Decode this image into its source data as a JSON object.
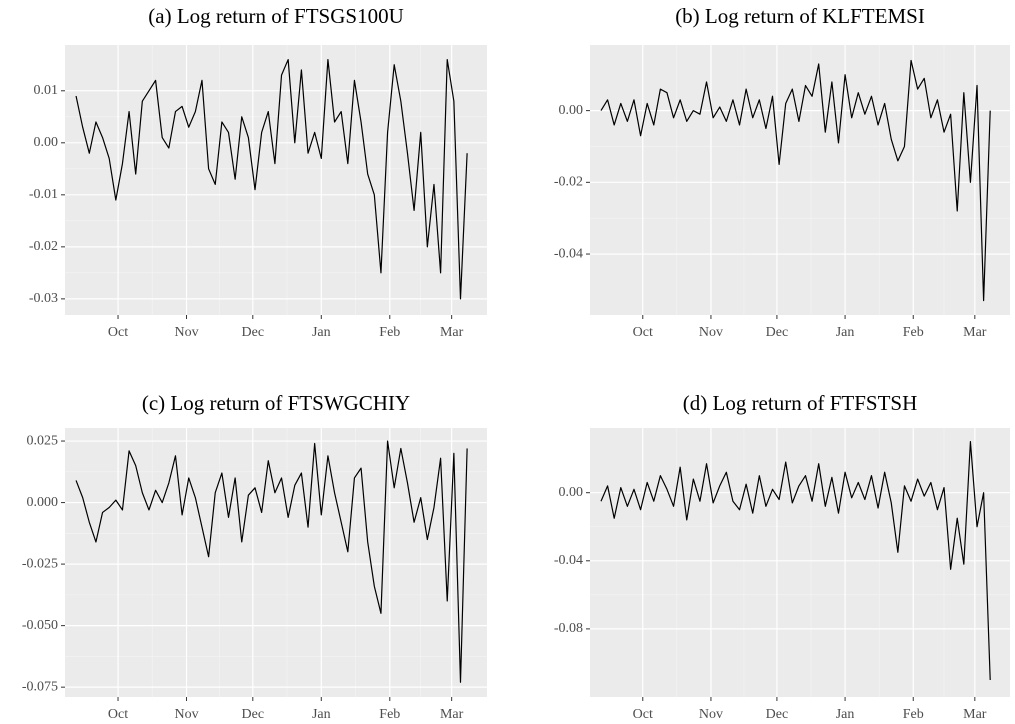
{
  "chart_data": [
    {
      "type": "line",
      "title": "(a) Log return of FTSGS100U",
      "x": [
        11,
        14,
        17,
        20,
        23,
        26,
        29,
        32,
        35,
        38,
        41,
        44,
        47,
        50,
        53,
        56,
        59,
        62,
        65,
        68,
        71,
        74,
        77,
        80,
        83,
        86,
        89,
        92,
        95,
        98,
        101,
        104,
        107,
        110,
        113,
        116,
        119,
        122,
        125,
        128,
        131,
        134,
        137,
        140,
        143,
        146,
        149,
        152,
        155,
        158,
        161,
        164,
        167,
        170,
        173,
        176,
        179,
        182,
        185,
        188
      ],
      "series": [
        {
          "color": "#000000",
          "values": [
            0.009,
            0.003,
            -0.002,
            0.004,
            0.001,
            -0.003,
            -0.011,
            -0.004,
            0.006,
            -0.006,
            0.008,
            0.01,
            0.012,
            0.001,
            -0.001,
            0.006,
            0.007,
            0.003,
            0.006,
            0.012,
            -0.005,
            -0.008,
            0.004,
            0.002,
            -0.007,
            0.005,
            0.001,
            -0.009,
            0.002,
            0.006,
            -0.004,
            0.013,
            0.016,
            0.0,
            0.014,
            -0.002,
            0.002,
            -0.003,
            0.016,
            0.004,
            0.006,
            -0.004,
            0.012,
            0.004,
            -0.006,
            -0.01,
            -0.025,
            0.002,
            0.015,
            0.008,
            -0.002,
            -0.013,
            0.002,
            -0.02,
            -0.008,
            -0.025,
            0.016,
            0.008,
            -0.03,
            -0.002
          ]
        }
      ],
      "xlim": [
        6,
        197
      ],
      "xticks": [
        {
          "value": 30,
          "label": "Oct"
        },
        {
          "value": 61,
          "label": "Nov"
        },
        {
          "value": 91,
          "label": "Dec"
        },
        {
          "value": 122,
          "label": "Jan"
        },
        {
          "value": 153,
          "label": "Feb"
        },
        {
          "value": 181,
          "label": "Mar"
        }
      ],
      "ylim": [
        -0.0331,
        0.0188
      ],
      "yticks": [
        -0.03,
        -0.02,
        -0.01,
        {
          "value": 0,
          "label": "0.00"
        },
        0.01
      ],
      "grid": true
    },
    {
      "type": "line",
      "title": "(b) Log return of KLFTEMSI",
      "x": [
        11,
        14,
        17,
        20,
        23,
        26,
        29,
        32,
        35,
        38,
        41,
        44,
        47,
        50,
        53,
        56,
        59,
        62,
        65,
        68,
        71,
        74,
        77,
        80,
        83,
        86,
        89,
        92,
        95,
        98,
        101,
        104,
        107,
        110,
        113,
        116,
        119,
        122,
        125,
        128,
        131,
        134,
        137,
        140,
        143,
        146,
        149,
        152,
        155,
        158,
        161,
        164,
        167,
        170,
        173,
        176,
        179,
        182,
        185,
        188
      ],
      "series": [
        {
          "color": "#000000",
          "values": [
            0.0,
            0.003,
            -0.004,
            0.002,
            -0.003,
            0.003,
            -0.007,
            0.002,
            -0.004,
            0.006,
            0.005,
            -0.002,
            0.003,
            -0.003,
            0.0,
            -0.001,
            0.008,
            -0.002,
            0.001,
            -0.003,
            0.003,
            -0.004,
            0.006,
            -0.002,
            0.003,
            -0.005,
            0.004,
            -0.015,
            0.002,
            0.006,
            -0.003,
            0.007,
            0.004,
            0.013,
            -0.006,
            0.008,
            -0.009,
            0.01,
            -0.002,
            0.005,
            -0.001,
            0.004,
            -0.004,
            0.002,
            -0.008,
            -0.014,
            -0.01,
            0.014,
            0.006,
            0.009,
            -0.002,
            0.003,
            -0.006,
            -0.001,
            -0.028,
            0.005,
            -0.02,
            0.007,
            -0.053,
            0.0
          ]
        }
      ],
      "xlim": [
        6,
        197
      ],
      "xticks": [
        {
          "value": 30,
          "label": "Oct"
        },
        {
          "value": 61,
          "label": "Nov"
        },
        {
          "value": 91,
          "label": "Dec"
        },
        {
          "value": 122,
          "label": "Jan"
        },
        {
          "value": 153,
          "label": "Feb"
        },
        {
          "value": 181,
          "label": "Mar"
        }
      ],
      "ylim": [
        -0.057,
        0.0183
      ],
      "yticks": [
        {
          "value": -0.04,
          "label": "-0.04"
        },
        {
          "value": -0.02,
          "label": "-0.02"
        },
        {
          "value": 0,
          "label": "0.00"
        }
      ],
      "grid": true
    },
    {
      "type": "line",
      "title": "(c) Log return of FTSWGCHIY",
      "x": [
        11,
        14,
        17,
        20,
        23,
        26,
        29,
        32,
        35,
        38,
        41,
        44,
        47,
        50,
        53,
        56,
        59,
        62,
        65,
        68,
        71,
        74,
        77,
        80,
        83,
        86,
        89,
        92,
        95,
        98,
        101,
        104,
        107,
        110,
        113,
        116,
        119,
        122,
        125,
        128,
        131,
        134,
        137,
        140,
        143,
        146,
        149,
        152,
        155,
        158,
        161,
        164,
        167,
        170,
        173,
        176,
        179,
        182,
        185,
        188
      ],
      "series": [
        {
          "color": "#000000",
          "values": [
            0.009,
            0.002,
            -0.008,
            -0.016,
            -0.004,
            -0.002,
            0.001,
            -0.003,
            0.021,
            0.015,
            0.004,
            -0.003,
            0.005,
            0.0,
            0.008,
            0.019,
            -0.005,
            0.01,
            0.002,
            -0.01,
            -0.022,
            0.004,
            0.012,
            -0.006,
            0.01,
            -0.016,
            0.003,
            0.006,
            -0.004,
            0.017,
            0.004,
            0.01,
            -0.006,
            0.007,
            0.012,
            -0.01,
            0.024,
            -0.005,
            0.019,
            0.004,
            -0.008,
            -0.02,
            0.01,
            0.014,
            -0.016,
            -0.034,
            -0.045,
            0.025,
            0.006,
            0.022,
            0.008,
            -0.008,
            0.002,
            -0.015,
            -0.002,
            0.018,
            -0.04,
            0.02,
            -0.073,
            0.022
          ]
        }
      ],
      "xlim": [
        6,
        197
      ],
      "xticks": [
        {
          "value": 30,
          "label": "Oct"
        },
        {
          "value": 61,
          "label": "Nov"
        },
        {
          "value": 91,
          "label": "Dec"
        },
        {
          "value": 122,
          "label": "Jan"
        },
        {
          "value": 153,
          "label": "Feb"
        },
        {
          "value": 181,
          "label": "Mar"
        }
      ],
      "ylim": [
        -0.079,
        0.0303
      ],
      "yticks": [
        -0.075,
        {
          "value": -0.05,
          "label": "-0.050"
        },
        -0.025,
        {
          "value": 0,
          "label": "0.000"
        },
        0.025
      ],
      "grid": true
    },
    {
      "type": "line",
      "title": "(d) Log return of FTFSTSH",
      "x": [
        11,
        14,
        17,
        20,
        23,
        26,
        29,
        32,
        35,
        38,
        41,
        44,
        47,
        50,
        53,
        56,
        59,
        62,
        65,
        68,
        71,
        74,
        77,
        80,
        83,
        86,
        89,
        92,
        95,
        98,
        101,
        104,
        107,
        110,
        113,
        116,
        119,
        122,
        125,
        128,
        131,
        134,
        137,
        140,
        143,
        146,
        149,
        152,
        155,
        158,
        161,
        164,
        167,
        170,
        173,
        176,
        179,
        182,
        185,
        188
      ],
      "series": [
        {
          "color": "#000000",
          "values": [
            -0.005,
            0.004,
            -0.015,
            0.003,
            -0.008,
            0.002,
            -0.01,
            0.006,
            -0.005,
            0.01,
            0.002,
            -0.008,
            0.015,
            -0.016,
            0.008,
            -0.005,
            0.017,
            -0.006,
            0.004,
            0.012,
            -0.005,
            -0.01,
            0.005,
            -0.012,
            0.01,
            -0.008,
            0.002,
            -0.004,
            0.018,
            -0.006,
            0.004,
            0.01,
            -0.005,
            0.017,
            -0.008,
            0.009,
            -0.012,
            0.012,
            -0.003,
            0.006,
            -0.004,
            0.01,
            -0.009,
            0.012,
            -0.006,
            -0.035,
            0.004,
            -0.005,
            0.008,
            -0.002,
            0.006,
            -0.01,
            0.003,
            -0.045,
            -0.015,
            -0.042,
            0.03,
            -0.02,
            0.0,
            -0.11
          ]
        }
      ],
      "xlim": [
        6,
        197
      ],
      "xticks": [
        {
          "value": 30,
          "label": "Oct"
        },
        {
          "value": 61,
          "label": "Nov"
        },
        {
          "value": 91,
          "label": "Dec"
        },
        {
          "value": 122,
          "label": "Jan"
        },
        {
          "value": 153,
          "label": "Feb"
        },
        {
          "value": 181,
          "label": "Mar"
        }
      ],
      "ylim": [
        -0.12,
        0.038
      ],
      "yticks": [
        {
          "value": -0.08,
          "label": "-0.08"
        },
        {
          "value": -0.04,
          "label": "-0.04"
        },
        {
          "value": 0,
          "label": "0.00"
        }
      ],
      "grid": true
    }
  ]
}
